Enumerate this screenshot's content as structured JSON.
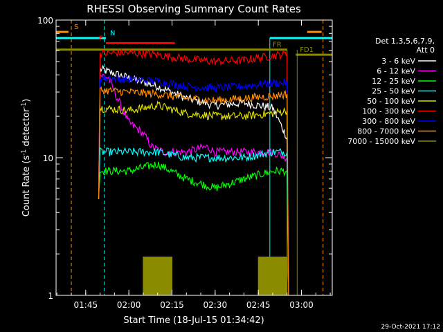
{
  "chart_data": {
    "type": "line",
    "title": "RHESSI Observing Summary Count Rates",
    "xlabel": "Start Time (18-Jul-15 01:34:42)",
    "ylabel_main": "Count Rate (s",
    "ylabel_sup1": "-1",
    "ylabel_mid": " detector",
    "ylabel_sup2": "-1",
    "ylabel_end": ")",
    "yscale": "log",
    "xlim": [
      "01:34:42",
      "03:10:42"
    ],
    "ylim": [
      1,
      100
    ],
    "x_ticks": [
      "01:45",
      "02:00",
      "02:15",
      "02:30",
      "02:45",
      "03:00"
    ],
    "y_ticks": [
      "1",
      "10",
      "100"
    ],
    "legend_header": [
      "Det 1,3,5,6,7,9,",
      "Att 0"
    ],
    "legend_placement": "right",
    "series": [
      {
        "name": "3 - 6 keV",
        "color": "#ffffff",
        "segments": [
          [
            [
              "01:49:30",
              5
            ],
            [
              "01:50:00",
              44
            ],
            [
              "02:00:00",
              38
            ],
            [
              "02:10:00",
              33
            ],
            [
              "02:20:00",
              27
            ],
            [
              "02:30:00",
              24
            ],
            [
              "02:40:00",
              25
            ],
            [
              "02:50:00",
              23
            ],
            [
              "02:55:00",
              14
            ],
            [
              "02:55:30",
              1
            ]
          ]
        ]
      },
      {
        "name": "6 - 12 keV",
        "color": "#ff00ff",
        "segments": [
          [
            [
              "01:49:30",
              5
            ],
            [
              "01:50:00",
              40
            ],
            [
              "01:53:00",
              38
            ],
            [
              "01:55:00",
              30
            ],
            [
              "01:58:00",
              22
            ],
            [
              "02:00:00",
              18
            ],
            [
              "02:05:00",
              15
            ],
            [
              "02:08:00",
              12
            ],
            [
              "02:12:00",
              11
            ],
            [
              "02:20:00",
              11
            ],
            [
              "02:27:00",
              12
            ],
            [
              "02:30:00",
              11
            ],
            [
              "02:40:00",
              11
            ],
            [
              "02:50:00",
              11
            ],
            [
              "02:55:00",
              10
            ],
            [
              "02:55:30",
              1
            ]
          ]
        ]
      },
      {
        "name": "12 - 25 keV",
        "color": "#00ff00",
        "segments": [
          [
            [
              "01:49:30",
              5
            ],
            [
              "01:50:00",
              8
            ],
            [
              "02:00:00",
              8
            ],
            [
              "02:10:00",
              9
            ],
            [
              "02:20:00",
              7
            ],
            [
              "02:30:00",
              6
            ],
            [
              "02:40:00",
              7
            ],
            [
              "02:50:00",
              8
            ],
            [
              "02:55:00",
              8
            ],
            [
              "02:55:30",
              1
            ]
          ]
        ]
      },
      {
        "name": "25 - 50 keV",
        "color": "#00ffff",
        "segments": [
          [
            [
              "01:49:30",
              5
            ],
            [
              "01:50:00",
              11
            ],
            [
              "02:00:00",
              11
            ],
            [
              "02:10:00",
              11
            ],
            [
              "02:20:00",
              10
            ],
            [
              "02:30:00",
              10
            ],
            [
              "02:40:00",
              10
            ],
            [
              "02:50:00",
              11
            ],
            [
              "02:55:00",
              11
            ],
            [
              "02:55:30",
              1
            ]
          ]
        ]
      },
      {
        "name": "50 - 100 keV",
        "color": "#dddd00",
        "segments": [
          [
            [
              "01:49:30",
              5
            ],
            [
              "01:50:00",
              23
            ],
            [
              "02:00:00",
              22
            ],
            [
              "02:10:00",
              24
            ],
            [
              "02:20:00",
              21
            ],
            [
              "02:30:00",
              20
            ],
            [
              "02:40:00",
              20
            ],
            [
              "02:50:00",
              21
            ],
            [
              "02:55:00",
              22
            ],
            [
              "02:55:30",
              1
            ]
          ]
        ]
      },
      {
        "name": "100 - 300 keV",
        "color": "#ff0000",
        "segments": [
          [
            [
              "01:49:30",
              5
            ],
            [
              "01:50:00",
              57
            ],
            [
              "02:00:00",
              58
            ],
            [
              "02:10:00",
              56
            ],
            [
              "02:20:00",
              52
            ],
            [
              "02:30:00",
              50
            ],
            [
              "02:40:00",
              51
            ],
            [
              "02:50:00",
              55
            ],
            [
              "02:55:00",
              57
            ],
            [
              "02:55:30",
              1
            ]
          ]
        ]
      },
      {
        "name": "300 - 800 keV",
        "color": "#0000ff",
        "segments": [
          [
            [
              "01:49:30",
              5
            ],
            [
              "01:50:00",
              38
            ],
            [
              "02:00:00",
              37
            ],
            [
              "02:10:00",
              36
            ],
            [
              "02:20:00",
              33
            ],
            [
              "02:30:00",
              32
            ],
            [
              "02:40:00",
              33
            ],
            [
              "02:50:00",
              35
            ],
            [
              "02:55:00",
              35
            ],
            [
              "02:55:30",
              1
            ]
          ]
        ]
      },
      {
        "name": "800 - 7000 keV",
        "color": "#ff8c00",
        "segments": [
          [
            [
              "01:49:30",
              5
            ],
            [
              "01:50:00",
              31
            ],
            [
              "02:00:00",
              30
            ],
            [
              "02:10:00",
              29
            ],
            [
              "02:20:00",
              27
            ],
            [
              "02:30:00",
              26
            ],
            [
              "02:40:00",
              27
            ],
            [
              "02:50:00",
              28
            ],
            [
              "02:55:00",
              29
            ],
            [
              "02:55:30",
              1
            ]
          ]
        ]
      },
      {
        "name": "7000 - 15000 keV",
        "color": "#8b8b00",
        "segments": [
          [
            [
              "02:05:00",
              1
            ],
            [
              "02:05:00",
              1.9
            ],
            [
              "02:15:00",
              1.9
            ],
            [
              "02:15:00",
              1
            ]
          ],
          [
            [
              "02:45:00",
              1
            ],
            [
              "02:45:00",
              1.9
            ],
            [
              "02:55:00",
              1.9
            ],
            [
              "02:55:00",
              1
            ]
          ]
        ]
      }
    ],
    "flag_labels": {
      "s": "S",
      "n": "N",
      "f": "F",
      "fr": "FR",
      "fd1": "FD1"
    },
    "flags": [
      {
        "label_key": "s",
        "color": "#ff8c00",
        "y": 82,
        "spans": [
          [
            "01:34:42",
            "01:39:00"
          ],
          [
            "03:02:00",
            "03:07:00"
          ]
        ],
        "dashed_at": [
          "01:40:00",
          "03:07:30"
        ]
      },
      {
        "label_key": "n",
        "color": "#00ffff",
        "y": 74,
        "spans": [
          [
            "01:34:42",
            "01:52:00"
          ],
          [
            "02:49:00",
            "03:10:42"
          ]
        ],
        "dashed_at": [
          "01:51:30"
        ],
        "solid_at": [
          "01:34:42",
          "02:49:00"
        ]
      },
      {
        "label_key": "f",
        "color": "#ff0000",
        "y": 68,
        "spans": [
          [
            "01:52:00",
            "02:16:00"
          ]
        ]
      },
      {
        "label_key": "fr",
        "color": "#8b8b00",
        "y": 61,
        "spans": [
          [
            "01:34:42",
            "02:55:00"
          ]
        ],
        "solid_at": [
          "02:55:00",
          "02:58:30"
        ]
      },
      {
        "label_key": "fd1",
        "color": "#8b8b00",
        "y": 56,
        "spans": [
          [
            "02:58:00",
            "03:10:42"
          ]
        ]
      }
    ],
    "timestamp": "29-Oct-2021 17:12"
  }
}
